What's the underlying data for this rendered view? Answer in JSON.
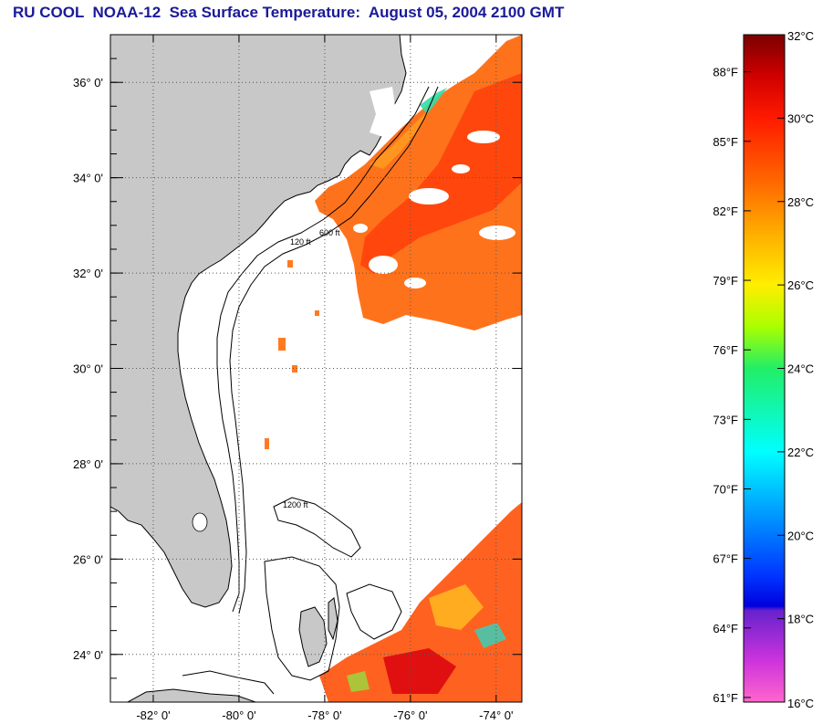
{
  "title": "RU COOL  NOAA-12  Sea Surface Temperature:  August 05, 2004 2100 GMT",
  "map": {
    "lon_range": [
      -83,
      -73.4
    ],
    "lat_range": [
      23,
      37
    ],
    "lon_ticks": [
      -82,
      -80,
      -78,
      -76,
      -74
    ],
    "lat_ticks": [
      24,
      26,
      28,
      30,
      32,
      34,
      36
    ],
    "lon_labels": [
      "-82° 0'",
      "-80° 0'",
      "-78° 0'",
      "-76° 0'",
      "-74° 0'"
    ],
    "lat_labels": [
      "24° 0'",
      "26° 0'",
      "28° 0'",
      "30° 0'",
      "32° 0'",
      "34° 0'",
      "36° 0'"
    ],
    "grid": "dotted",
    "land_color": "#c8c8c8",
    "contour_labels": [
      "120 ft",
      "600 ft",
      "1200 ft"
    ]
  },
  "colorbar": {
    "range_c": [
      16,
      32
    ],
    "celsius_labels": [
      "32°C",
      "30°C",
      "28°C",
      "26°C",
      "24°C",
      "22°C",
      "20°C",
      "18°C",
      "16°C"
    ],
    "fahrenheit_labels": [
      "88°F",
      "85°F",
      "82°F",
      "79°F",
      "76°F",
      "73°F",
      "70°F",
      "67°F",
      "64°F",
      "61°F"
    ],
    "gradient": [
      {
        "c": 32,
        "color": "#7a0000"
      },
      {
        "c": 31,
        "color": "#d00000"
      },
      {
        "c": 30,
        "color": "#ff1a00"
      },
      {
        "c": 28.5,
        "color": "#ff6600"
      },
      {
        "c": 27.3,
        "color": "#ffaa00"
      },
      {
        "c": 26,
        "color": "#ffee00"
      },
      {
        "c": 25,
        "color": "#aaff00"
      },
      {
        "c": 24,
        "color": "#22ee66"
      },
      {
        "c": 22,
        "color": "#00ffff"
      },
      {
        "c": 20.5,
        "color": "#0099ff"
      },
      {
        "c": 19,
        "color": "#0033ff"
      },
      {
        "c": 18.3,
        "color": "#0000dd"
      },
      {
        "c": 18.2,
        "color": "#6622cc"
      },
      {
        "c": 17,
        "color": "#cc33dd"
      },
      {
        "c": 16,
        "color": "#ff66cc"
      }
    ]
  }
}
